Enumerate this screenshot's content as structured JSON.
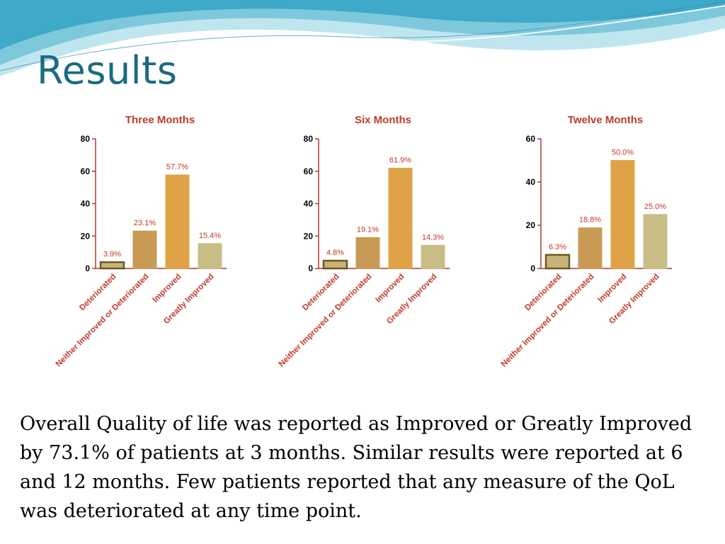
{
  "slide": {
    "title": "Results",
    "body": "Overall Quality of life was reported as Improved or Greatly Improved by 73.1% of patients at 3 months. Similar  results were reported at 6 and 12 months. Few patients reported that any measure of the QoL was deteriorated at any time point."
  },
  "colors": {
    "title": "#1a6b80",
    "chart_title": "#c0392b",
    "axis": "#b03a2e",
    "labels": "#c0392b"
  },
  "chart_data": [
    {
      "type": "bar",
      "title": "Three Months",
      "categories": [
        "Deteriorated",
        "Neither Improved or Deteriorated",
        "Improved",
        "Greatly Improved"
      ],
      "values": [
        3.9,
        23.1,
        57.7,
        15.4
      ],
      "value_labels": [
        "3.9%",
        "23.1%",
        "57.7%",
        "15.4%"
      ],
      "bar_colors": [
        "#c7b27a",
        "#c99a55",
        "#e0a247",
        "#c9bd86"
      ],
      "bar_borders": [
        "#6e5a1e",
        "#c99a55",
        "#e0a247",
        "#c9bd86"
      ],
      "ylim": [
        0,
        80
      ],
      "yticks": [
        0,
        20,
        40,
        60,
        80
      ],
      "xlabel": "",
      "ylabel": "",
      "grid": false
    },
    {
      "type": "bar",
      "title": "Six Months",
      "categories": [
        "Deteriorated",
        "Neither Improved or Deteriorated",
        "Improved",
        "Greatly Improved"
      ],
      "values": [
        4.8,
        19.1,
        61.9,
        14.3
      ],
      "value_labels": [
        "4.8%",
        "19.1%",
        "61.9%",
        "14.3%"
      ],
      "bar_colors": [
        "#c7b27a",
        "#c99a55",
        "#e0a247",
        "#c9bd86"
      ],
      "bar_borders": [
        "#6e5a1e",
        "#c99a55",
        "#e0a247",
        "#c9bd86"
      ],
      "ylim": [
        0,
        80
      ],
      "yticks": [
        0,
        20,
        40,
        60,
        80
      ],
      "xlabel": "",
      "ylabel": "",
      "grid": false
    },
    {
      "type": "bar",
      "title": "Twelve Months",
      "categories": [
        "Deteriorated",
        "Neither Improved or Deteriorated",
        "Improved",
        "Greatly Improved"
      ],
      "values": [
        6.3,
        18.8,
        50.0,
        25.0
      ],
      "value_labels": [
        "6.3%",
        "18.8%",
        "50.0%",
        "25.0%"
      ],
      "bar_colors": [
        "#c7b27a",
        "#c99a55",
        "#e0a247",
        "#c9bd86"
      ],
      "bar_borders": [
        "#6e5a1e",
        "#c99a55",
        "#e0a247",
        "#c9bd86"
      ],
      "ylim": [
        0,
        60
      ],
      "yticks": [
        0,
        20,
        40,
        60
      ],
      "xlabel": "",
      "ylabel": "",
      "grid": false
    }
  ]
}
